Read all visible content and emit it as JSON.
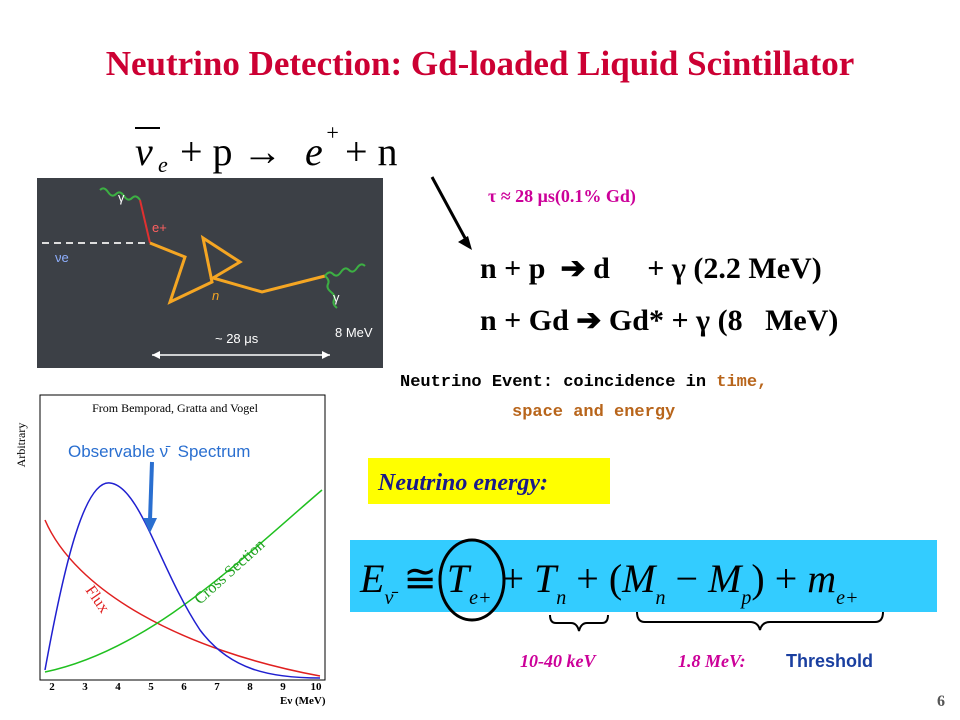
{
  "header": {
    "title": "Neutrino Detection: Gd-loaded Liquid Scintillator"
  },
  "reaction": {
    "nu": "ν",
    "e": "e",
    "plus1": "+ p →",
    "epos": "e",
    "sup": "+",
    "plus2": "+ n"
  },
  "diagram": {
    "gamma1": "γ",
    "positron": "e+",
    "neutrino": "νe",
    "neutron": "n",
    "gamma2": "γ",
    "time": "~ 28 μs",
    "energy": "8 MeV"
  },
  "capture": {
    "tau": "τ ≈ 28 μs(0.1% Gd)",
    "lines": [
      "n + p  ➔ d     + γ (2.2 MeV)",
      "n + Gd ➔ Gd* + γ (8   MeV)"
    ]
  },
  "event": {
    "lead": "Neutrino Event: coincidence in ",
    "time": "time,",
    "rest": "space and energy"
  },
  "plot": {
    "source": "From Bemporad, Gratta and Vogel",
    "legend": "Observable ν̄  Spectrum",
    "ylabel": "Arbitrary",
    "flux": "Flux",
    "cross": "Cross Section",
    "xticks": [
      "2",
      "3",
      "4",
      "5",
      "6",
      "7",
      "8",
      "9",
      "10"
    ],
    "xlabel": "Eν (MeV)"
  },
  "energy": {
    "label": "Neutrino energy:",
    "formula": [
      "E",
      "ν̄",
      " ≅ ",
      "T",
      "e+",
      " + ",
      "T",
      "n",
      " + (",
      "M",
      "n",
      " − ",
      "M",
      "p",
      ") + ",
      "m",
      "e+"
    ],
    "kev": "10-40 keV",
    "mev": "1.8 MeV:",
    "threshold": "Threshold"
  },
  "footer": {
    "page": "6"
  }
}
